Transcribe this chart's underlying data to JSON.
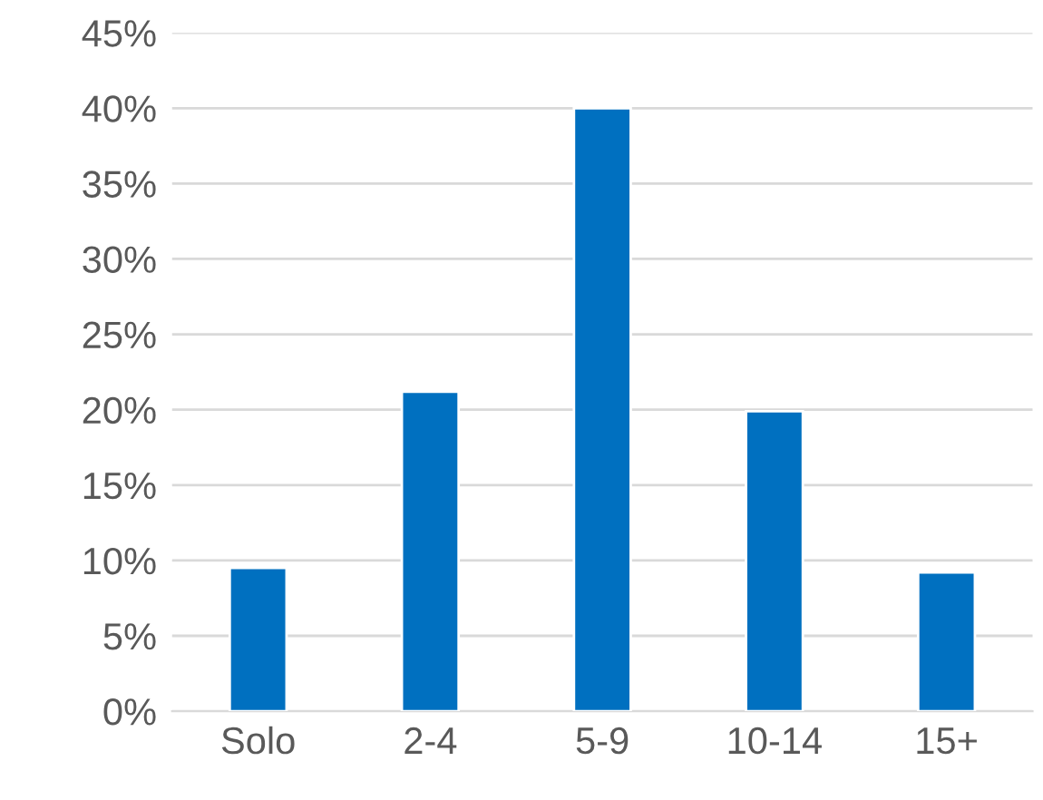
{
  "chart_data": {
    "type": "bar",
    "categories": [
      "Solo",
      "2-4",
      "5-9",
      "10-14",
      "15+"
    ],
    "values": [
      9.5,
      21.2,
      40,
      19.9,
      9.2
    ],
    "color": "#0070c0",
    "ylim": [
      0,
      45
    ],
    "yticks": [
      {
        "value": 0,
        "label": "0%"
      },
      {
        "value": 5,
        "label": "5%"
      },
      {
        "value": 10,
        "label": "10%"
      },
      {
        "value": 15,
        "label": "15%"
      },
      {
        "value": 20,
        "label": "20%"
      },
      {
        "value": 25,
        "label": "25%"
      },
      {
        "value": 30,
        "label": "30%"
      },
      {
        "value": 35,
        "label": "35%"
      },
      {
        "value": 40,
        "label": "40%"
      },
      {
        "value": 45,
        "label": "45%"
      }
    ],
    "grid": "y"
  }
}
